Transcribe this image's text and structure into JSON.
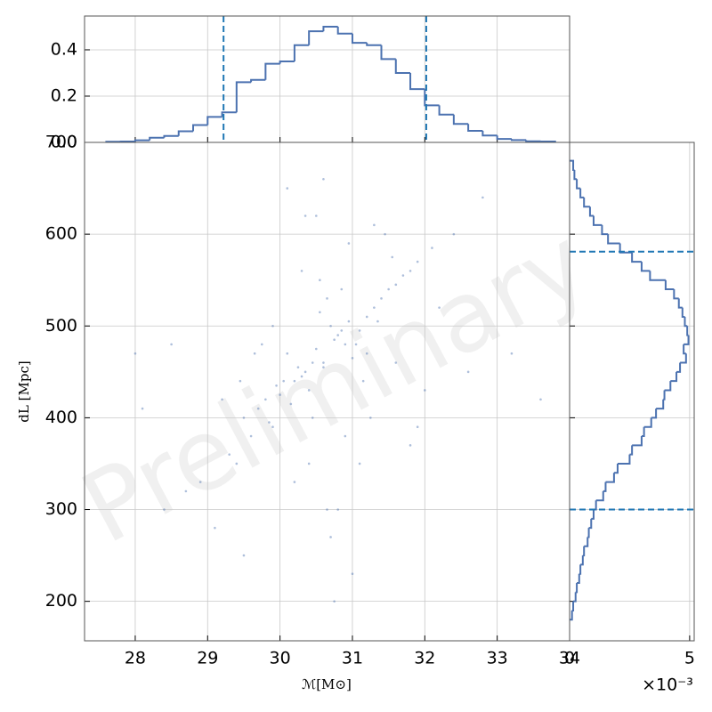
{
  "chart_data": [
    {
      "type": "scatter",
      "xlabel": "ℳ[M⊙]",
      "ylabel": "dL [Mpc]",
      "watermark": "Preliminary",
      "color": "#4c72b0",
      "grid": true,
      "xlim": [
        27.3,
        34
      ],
      "ylim": [
        157,
        700
      ],
      "xticks": [
        28,
        29,
        30,
        31,
        32,
        33,
        34
      ],
      "yticks": [
        200,
        300,
        400,
        500,
        600,
        700
      ],
      "x": [
        30.1,
        31.2,
        30.6,
        29.8,
        31.5,
        30.9,
        30.3,
        31.8,
        29.5,
        30.7,
        31.0,
        30.4,
        29.9,
        31.3,
        30.8,
        32.1,
        29.3,
        30.5,
        31.6,
        30.2,
        30.95,
        29.7,
        31.1,
        30.6,
        28.9,
        31.9,
        30.0,
        30.75,
        31.4,
        29.6,
        30.35,
        32.4,
        28.4,
        31.2,
        30.55,
        29.95,
        31.7,
        30.15,
        30.85,
        29.4,
        31.05,
        30.45,
        32.8,
        28.7,
        30.65,
        31.35,
        29.85,
        30.25,
        31.55,
        30.05,
        33.6,
        28.1,
        30.9,
        31.15,
        29.65,
        30.4,
        32.2,
        29.1,
        30.7,
        31.45,
        30.5,
        30.8,
        29.75,
        31.25,
        30.3,
        32.6,
        28.5,
        31.8,
        30.1,
        30.6,
        29.5,
        31.0,
        30.95,
        30.2,
        31.6,
        29.2,
        32.0,
        30.45,
        30.85,
        29.9,
        31.3,
        30.55,
        28.0,
        33.2,
        30.75,
        31.1,
        29.45,
        30.35,
        31.9,
        30.65
      ],
      "y": [
        470,
        510,
        455,
        420,
        540,
        480,
        445,
        560,
        400,
        500,
        465,
        430,
        390,
        520,
        490,
        585,
        360,
        475,
        545,
        440,
        505,
        410,
        495,
        460,
        330,
        570,
        425,
        485,
        530,
        380,
        450,
        600,
        300,
        470,
        515,
        435,
        555,
        415,
        495,
        350,
        480,
        460,
        640,
        320,
        530,
        505,
        395,
        455,
        575,
        440,
        420,
        410,
        380,
        440,
        470,
        350,
        520,
        280,
        270,
        600,
        620,
        300,
        480,
        400,
        560,
        450,
        480,
        370,
        650,
        660,
        250,
        230,
        590,
        330,
        460,
        420,
        430,
        400,
        540,
        500,
        610,
        550,
        470,
        470,
        200,
        350,
        440,
        620,
        390,
        300
      ]
    },
    {
      "type": "histogram",
      "orientation": "vertical",
      "color": "#4c72b0",
      "line_color": "#1f77b4",
      "grid": true,
      "xticklabels": false,
      "xlim": [
        27.3,
        34
      ],
      "ylim": [
        0,
        0.546
      ],
      "xticks": [
        28,
        29,
        30,
        31,
        32,
        33,
        34
      ],
      "yticks": [
        {
          "value": 0,
          "label": "0.0"
        },
        0.2,
        0.4
      ],
      "bins": [
        27.6,
        27.8,
        28.0,
        28.2,
        28.4,
        28.6,
        28.8,
        29.0,
        29.2,
        29.4,
        29.6,
        29.8,
        30.0,
        30.2,
        30.4,
        30.6,
        30.8,
        31.0,
        31.2,
        31.4,
        31.6,
        31.8,
        32.0,
        32.2,
        32.4,
        32.6,
        32.8,
        33.0,
        33.2,
        33.4,
        33.6,
        33.8
      ],
      "values": [
        0.003,
        0.004,
        0.009,
        0.02,
        0.028,
        0.048,
        0.075,
        0.11,
        0.13,
        0.26,
        0.27,
        0.34,
        0.35,
        0.42,
        0.48,
        0.5,
        0.47,
        0.43,
        0.42,
        0.36,
        0.3,
        0.23,
        0.16,
        0.12,
        0.08,
        0.05,
        0.03,
        0.015,
        0.01,
        0.005,
        0.004
      ],
      "vlines": [
        29.22,
        32.02
      ]
    },
    {
      "type": "histogram",
      "orientation": "horizontal",
      "color": "#4c72b0",
      "line_color": "#1f77b4",
      "grid": true,
      "yticklabels": false,
      "xlim": [
        0,
        5.19
      ],
      "ylim": [
        157,
        700
      ],
      "xticks": [
        0,
        5
      ],
      "yticks": [
        200,
        300,
        400,
        500,
        600,
        700
      ],
      "offset_label": "×10⁻³",
      "bins": [
        180,
        190,
        200,
        210,
        220,
        230,
        240,
        250,
        260,
        270,
        280,
        290,
        300,
        310,
        320,
        330,
        340,
        350,
        360,
        370,
        380,
        390,
        400,
        410,
        420,
        430,
        440,
        450,
        460,
        470,
        480,
        490,
        500,
        510,
        520,
        530,
        540,
        550,
        560,
        570,
        580,
        590,
        600,
        610,
        620,
        630,
        640,
        650,
        660,
        670,
        680
      ],
      "values": [
        0.1,
        0.15,
        0.25,
        0.3,
        0.4,
        0.45,
        0.55,
        0.6,
        0.75,
        0.8,
        0.9,
        1.0,
        1.1,
        1.4,
        1.5,
        1.85,
        2.0,
        2.5,
        2.6,
        3.0,
        3.1,
        3.4,
        3.6,
        3.9,
        3.95,
        4.2,
        4.45,
        4.6,
        4.85,
        4.75,
        4.95,
        4.9,
        4.8,
        4.7,
        4.55,
        4.35,
        4.0,
        3.35,
        3.0,
        2.6,
        2.1,
        1.6,
        1.35,
        1.0,
        0.85,
        0.6,
        0.45,
        0.3,
        0.2,
        0.15
      ],
      "hlines": [
        300,
        581
      ]
    }
  ]
}
